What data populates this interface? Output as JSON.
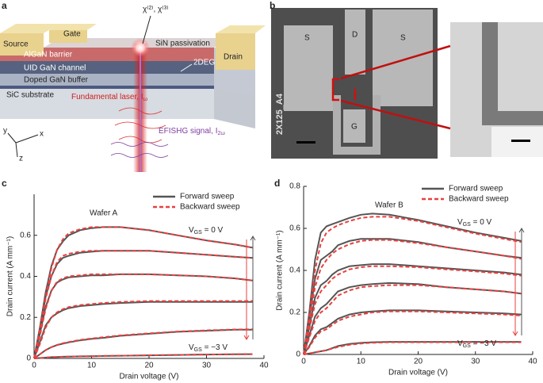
{
  "panel_labels": [
    "a",
    "b",
    "c",
    "d"
  ],
  "schematic": {
    "gate": "Gate",
    "source": "Source",
    "drain": "Drain",
    "algan": "AlGaN barrier",
    "sin": "SiN passivation",
    "twodeg": "2DEG",
    "channel": "UID GaN channel",
    "buffer": "Doped GaN buffer",
    "substrate": "SiC substrate",
    "chi": "χ⁽²⁾, χ⁽³⁾",
    "laser": {
      "text": "Fundamental laser, I",
      "sub": "ω"
    },
    "shg": {
      "text": "EFISHG signal, I",
      "sub": "2ω"
    },
    "axes": [
      "x",
      "y",
      "z"
    ]
  },
  "sem": {
    "pads": [
      "S",
      "D",
      "S",
      "G"
    ],
    "device_id": "2X125_A4"
  },
  "chart_data": [
    {
      "type": "line",
      "annotation": "Wafer A",
      "x_label": "Drain voltage (V)",
      "y_label": "Drain current (A mm⁻¹)",
      "xlim": [
        0,
        40
      ],
      "xticks": [
        0,
        10,
        20,
        30,
        40
      ],
      "ylim": [
        0,
        0.8
      ],
      "yticks": [
        0,
        0.2,
        0.4,
        0.6
      ],
      "vgs_labels": [
        {
          "symbol": "V",
          "sub": "GS",
          "text": " = 0 V"
        },
        {
          "symbol": "V",
          "sub": "GS",
          "text": " = −3 V"
        }
      ],
      "x": [
        0,
        1,
        2,
        3,
        4,
        5,
        6,
        8,
        10,
        12,
        15,
        20,
        25,
        30,
        35,
        38
      ],
      "series": [
        {
          "name": "Forward sweep",
          "color": "#555555",
          "line_style": "solid",
          "curves": [
            [
              0,
              0.15,
              0.32,
              0.45,
              0.53,
              0.57,
              0.6,
              0.625,
              0.635,
              0.64,
              0.64,
              0.625,
              0.6,
              0.575,
              0.555,
              0.54
            ],
            [
              0,
              0.14,
              0.3,
              0.4,
              0.46,
              0.49,
              0.5,
              0.515,
              0.52,
              0.525,
              0.525,
              0.525,
              0.515,
              0.505,
              0.495,
              0.49
            ],
            [
              0,
              0.12,
              0.25,
              0.33,
              0.37,
              0.385,
              0.395,
              0.4,
              0.405,
              0.405,
              0.41,
              0.41,
              0.405,
              0.4,
              0.39,
              0.38
            ],
            [
              0,
              0.08,
              0.16,
              0.2,
              0.22,
              0.235,
              0.245,
              0.255,
              0.26,
              0.265,
              0.27,
              0.275,
              0.275,
              0.275,
              0.275,
              0.275
            ],
            [
              0,
              0.02,
              0.04,
              0.055,
              0.065,
              0.072,
              0.078,
              0.088,
              0.095,
              0.1,
              0.11,
              0.12,
              0.13,
              0.135,
              0.14,
              0.14
            ],
            [
              0,
              0.002,
              0.004,
              0.006,
              0.007,
              0.008,
              0.009,
              0.01,
              0.011,
              0.012,
              0.013,
              0.015,
              0.017,
              0.019,
              0.02,
              0.021
            ]
          ]
        },
        {
          "name": "Backward sweep",
          "color": "#e8403f",
          "line_style": "dashed",
          "curves": [
            [
              0,
              0.14,
              0.3,
              0.44,
              0.53,
              0.58,
              0.61,
              0.63,
              0.64,
              0.64,
              0.64,
              0.625,
              0.6,
              0.575,
              0.555,
              0.54
            ],
            [
              0,
              0.13,
              0.29,
              0.4,
              0.47,
              0.5,
              0.51,
              0.52,
              0.525,
              0.525,
              0.525,
              0.525,
              0.515,
              0.505,
              0.495,
              0.49
            ],
            [
              0,
              0.11,
              0.24,
              0.33,
              0.375,
              0.39,
              0.4,
              0.405,
              0.41,
              0.41,
              0.41,
              0.41,
              0.405,
              0.4,
              0.39,
              0.38
            ],
            [
              0,
              0.07,
              0.15,
              0.2,
              0.225,
              0.24,
              0.25,
              0.26,
              0.265,
              0.27,
              0.275,
              0.28,
              0.28,
              0.28,
              0.28,
              0.28
            ],
            [
              0,
              0.02,
              0.04,
              0.055,
              0.066,
              0.074,
              0.08,
              0.09,
              0.097,
              0.103,
              0.112,
              0.122,
              0.131,
              0.137,
              0.141,
              0.142
            ],
            [
              0,
              0.002,
              0.004,
              0.006,
              0.007,
              0.008,
              0.009,
              0.01,
              0.011,
              0.012,
              0.013,
              0.015,
              0.017,
              0.019,
              0.02,
              0.021
            ]
          ]
        }
      ]
    },
    {
      "type": "line",
      "annotation": "Wafer B",
      "x_label": "Drain voltage (V)",
      "y_label": "Drain current (A mm⁻¹)",
      "xlim": [
        0,
        40
      ],
      "xticks": [
        0,
        10,
        20,
        30,
        40
      ],
      "ylim": [
        0,
        0.8
      ],
      "yticks": [
        0,
        0.2,
        0.4,
        0.6,
        0.8
      ],
      "vgs_labels": [
        {
          "symbol": "V",
          "sub": "GS",
          "text": " = 0 V"
        },
        {
          "symbol": "V",
          "sub": "GS",
          "text": " = −3 V"
        }
      ],
      "x": [
        0,
        1,
        2,
        3,
        4,
        5,
        6,
        8,
        10,
        12,
        15,
        20,
        25,
        30,
        35,
        38
      ],
      "series": [
        {
          "name": "Forward sweep",
          "color": "#555555",
          "line_style": "solid",
          "curves": [
            [
              0,
              0.2,
              0.45,
              0.58,
              0.61,
              0.62,
              0.63,
              0.65,
              0.665,
              0.67,
              0.665,
              0.64,
              0.61,
              0.58,
              0.555,
              0.54
            ],
            [
              0,
              0.17,
              0.36,
              0.45,
              0.47,
              0.49,
              0.52,
              0.54,
              0.55,
              0.55,
              0.55,
              0.535,
              0.51,
              0.49,
              0.47,
              0.46
            ],
            [
              0,
              0.13,
              0.27,
              0.33,
              0.35,
              0.38,
              0.4,
              0.42,
              0.425,
              0.43,
              0.43,
              0.42,
              0.41,
              0.4,
              0.39,
              0.38
            ],
            [
              0,
              0.09,
              0.18,
              0.22,
              0.24,
              0.27,
              0.3,
              0.32,
              0.33,
              0.335,
              0.34,
              0.335,
              0.32,
              0.31,
              0.3,
              0.29
            ],
            [
              0,
              0.04,
              0.09,
              0.12,
              0.13,
              0.15,
              0.17,
              0.19,
              0.2,
              0.205,
              0.21,
              0.21,
              0.205,
              0.2,
              0.195,
              0.19
            ],
            [
              0,
              0.005,
              0.01,
              0.015,
              0.02,
              0.03,
              0.04,
              0.05,
              0.055,
              0.058,
              0.06,
              0.06,
              0.06,
              0.06,
              0.06,
              0.06
            ]
          ]
        },
        {
          "name": "Backward sweep",
          "color": "#e8403f",
          "line_style": "dashed",
          "curves": [
            [
              0,
              0.18,
              0.4,
              0.53,
              0.58,
              0.6,
              0.615,
              0.635,
              0.65,
              0.655,
              0.655,
              0.635,
              0.605,
              0.575,
              0.55,
              0.535
            ],
            [
              0,
              0.15,
              0.32,
              0.41,
              0.45,
              0.48,
              0.5,
              0.525,
              0.54,
              0.545,
              0.545,
              0.53,
              0.51,
              0.49,
              0.47,
              0.455
            ],
            [
              0,
              0.12,
              0.24,
              0.3,
              0.33,
              0.36,
              0.38,
              0.405,
              0.415,
              0.42,
              0.42,
              0.415,
              0.405,
              0.395,
              0.385,
              0.375
            ],
            [
              0,
              0.08,
              0.16,
              0.2,
              0.22,
              0.25,
              0.28,
              0.305,
              0.32,
              0.325,
              0.33,
              0.33,
              0.32,
              0.31,
              0.3,
              0.29
            ],
            [
              0,
              0.035,
              0.08,
              0.11,
              0.12,
              0.14,
              0.16,
              0.18,
              0.19,
              0.2,
              0.205,
              0.205,
              0.2,
              0.195,
              0.19,
              0.185
            ],
            [
              0,
              0.005,
              0.01,
              0.015,
              0.02,
              0.028,
              0.036,
              0.046,
              0.052,
              0.056,
              0.058,
              0.058,
              0.058,
              0.058,
              0.058,
              0.058
            ]
          ]
        }
      ]
    }
  ]
}
